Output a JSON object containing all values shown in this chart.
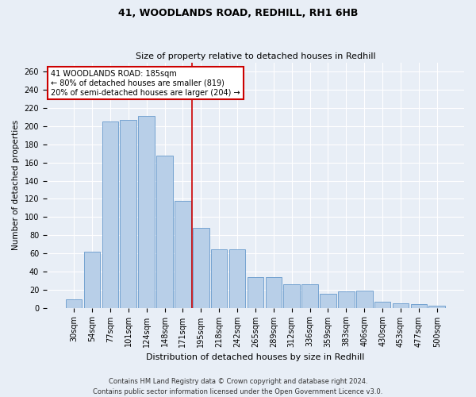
{
  "title_line1": "41, WOODLANDS ROAD, REDHILL, RH1 6HB",
  "title_line2": "Size of property relative to detached houses in Redhill",
  "xlabel": "Distribution of detached houses by size in Redhill",
  "ylabel": "Number of detached properties",
  "categories": [
    "30sqm",
    "54sqm",
    "77sqm",
    "101sqm",
    "124sqm",
    "148sqm",
    "171sqm",
    "195sqm",
    "218sqm",
    "242sqm",
    "265sqm",
    "289sqm",
    "312sqm",
    "336sqm",
    "359sqm",
    "383sqm",
    "406sqm",
    "430sqm",
    "453sqm",
    "477sqm",
    "500sqm"
  ],
  "values": [
    9,
    62,
    205,
    207,
    211,
    168,
    118,
    88,
    64,
    64,
    34,
    34,
    26,
    26,
    15,
    18,
    19,
    7,
    5,
    4,
    2
  ],
  "bar_color": "#b8cfe8",
  "bar_edge_color": "#6699cc",
  "vline_color": "#cc0000",
  "vline_x_index": 7.0,
  "annotation_line1": "41 WOODLANDS ROAD: 185sqm",
  "annotation_line2": "← 80% of detached houses are smaller (819)",
  "annotation_line3": "20% of semi-detached houses are larger (204) →",
  "annotation_box_facecolor": "#ffffff",
  "annotation_box_edgecolor": "#cc0000",
  "ylim": [
    0,
    270
  ],
  "yticks": [
    0,
    20,
    40,
    60,
    80,
    100,
    120,
    140,
    160,
    180,
    200,
    220,
    240,
    260
  ],
  "background_color": "#e8eef6",
  "fig_facecolor": "#e8eef6",
  "grid_color": "#ffffff",
  "title1_fontsize": 9,
  "title2_fontsize": 8,
  "xlabel_fontsize": 8,
  "ylabel_fontsize": 7.5,
  "tick_fontsize": 7,
  "annot_fontsize": 7,
  "footer_line1": "Contains HM Land Registry data © Crown copyright and database right 2024.",
  "footer_line2": "Contains public sector information licensed under the Open Government Licence v3.0.",
  "footer_fontsize": 6
}
